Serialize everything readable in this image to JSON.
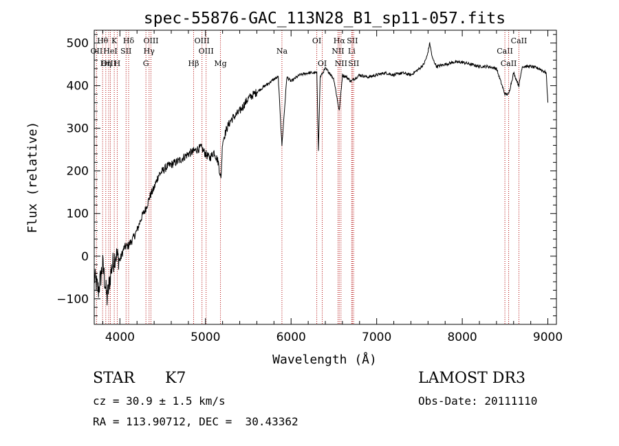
{
  "chart_data": {
    "type": "line",
    "title": "spec-55876-GAC_113N28_B1_sp11-057.fits",
    "xlabel": "Wavelength (Å)",
    "ylabel": "Flux (relative)",
    "xlim": [
      3700,
      9100
    ],
    "ylim": [
      -160,
      530
    ],
    "xticks": [
      4000,
      5000,
      6000,
      7000,
      8000,
      9000
    ],
    "yticks": [
      -100,
      0,
      100,
      200,
      300,
      400,
      500
    ],
    "grid": false,
    "series": [
      {
        "name": "flux",
        "color": "#000000",
        "x": [
          3700,
          3750,
          3800,
          3850,
          3900,
          3950,
          4000,
          4050,
          4100,
          4150,
          4200,
          4250,
          4300,
          4350,
          4400,
          4450,
          4500,
          4550,
          4600,
          4700,
          4800,
          4850,
          4900,
          4950,
          5000,
          5050,
          5100,
          5150,
          5180,
          5200,
          5250,
          5300,
          5400,
          5500,
          5600,
          5700,
          5800,
          5850,
          5893,
          5950,
          6000,
          6100,
          6200,
          6300,
          6320,
          6340,
          6400,
          6450,
          6500,
          6563,
          6600,
          6650,
          6700,
          6800,
          6900,
          7000,
          7100,
          7200,
          7300,
          7400,
          7500,
          7550,
          7590,
          7620,
          7650,
          7700,
          7800,
          7900,
          8000,
          8100,
          8200,
          8300,
          8400,
          8498,
          8542,
          8600,
          8662,
          8700,
          8800,
          8900,
          8980,
          9000
        ],
        "y": [
          -50,
          -80,
          -20,
          -100,
          -30,
          5,
          -10,
          20,
          25,
          40,
          60,
          90,
          110,
          140,
          160,
          190,
          200,
          210,
          215,
          225,
          240,
          245,
          250,
          255,
          240,
          230,
          245,
          220,
          180,
          270,
          300,
          320,
          340,
          370,
          385,
          400,
          415,
          420,
          260,
          420,
          410,
          425,
          430,
          430,
          250,
          420,
          440,
          430,
          415,
          340,
          425,
          420,
          410,
          425,
          420,
          425,
          430,
          425,
          430,
          425,
          440,
          450,
          470,
          500,
          465,
          445,
          450,
          455,
          455,
          450,
          445,
          445,
          440,
          380,
          380,
          430,
          400,
          445,
          445,
          440,
          430,
          360
        ]
      }
    ],
    "line_markers": [
      {
        "label": "Hθ",
        "x": 3798,
        "row": 1
      },
      {
        "label": "OII",
        "x": 3727,
        "row": 2
      },
      {
        "label": "OIII",
        "x": 3869,
        "row": 3
      },
      {
        "label": "K",
        "x": 3934,
        "row": 1
      },
      {
        "label": "HeI",
        "x": 3889,
        "row": 2
      },
      {
        "label": "Hη",
        "x": 3835,
        "row": 3
      },
      {
        "label": "H",
        "x": 3969,
        "row": 3
      },
      {
        "label": "Hδ",
        "x": 4102,
        "row": 1
      },
      {
        "label": "SII",
        "x": 4072,
        "row": 2
      },
      {
        "label": "OIII",
        "x": 4363,
        "row": 1
      },
      {
        "label": "Hγ",
        "x": 4341,
        "row": 2
      },
      {
        "label": "G",
        "x": 4304,
        "row": 3
      },
      {
        "label": "OIII",
        "x": 4959,
        "row": 1
      },
      {
        "label": "OIII",
        "x": 5007,
        "row": 2
      },
      {
        "label": "Hβ",
        "x": 4861,
        "row": 3
      },
      {
        "label": "Mg",
        "x": 5175,
        "row": 3
      },
      {
        "label": "Na",
        "x": 5893,
        "row": 2
      },
      {
        "label": "OI",
        "x": 6300,
        "row": 1
      },
      {
        "label": "OI",
        "x": 6364,
        "row": 3
      },
      {
        "label": "Hα",
        "x": 6563,
        "row": 1
      },
      {
        "label": "SII",
        "x": 6716,
        "row": 1
      },
      {
        "label": "NII",
        "x": 6548,
        "row": 2
      },
      {
        "label": "Li",
        "x": 6708,
        "row": 2
      },
      {
        "label": "NII",
        "x": 6583,
        "row": 3
      },
      {
        "label": "SII",
        "x": 6731,
        "row": 3
      },
      {
        "label": "CaII",
        "x": 8662,
        "row": 1
      },
      {
        "label": "CaII",
        "x": 8498,
        "row": 2
      },
      {
        "label": "CaII",
        "x": 8542,
        "row": 3
      }
    ]
  },
  "info": {
    "class": "STAR",
    "subclass": "K7",
    "survey": "LAMOST DR3",
    "redshift": "cz = 30.9 ± 1.5 km/s",
    "obs_date": "Obs-Date: 20111110",
    "coords": "RA = 113.90712, DEC =  30.43362"
  }
}
